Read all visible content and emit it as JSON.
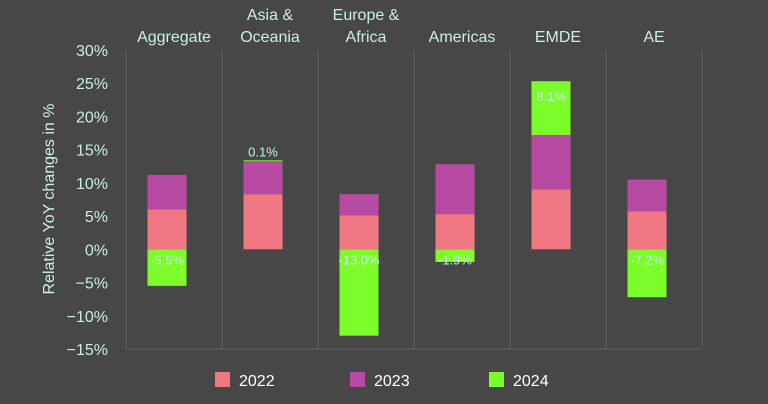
{
  "chart_data": {
    "type": "bar",
    "stacked": true,
    "ylabel": "Relative YoY changes in %",
    "ylim": [
      -15,
      30
    ],
    "yticks": [
      -15,
      -10,
      -5,
      0,
      5,
      10,
      15,
      20,
      25,
      30
    ],
    "ytick_labels": [
      "−15%",
      "−10%",
      "−5%",
      "0%",
      "5%",
      "10%",
      "15%",
      "20%",
      "25%",
      "30%"
    ],
    "categories": [
      [
        "Aggregate"
      ],
      [
        "Asia &",
        "Oceania"
      ],
      [
        "Europe &",
        "Africa"
      ],
      [
        "Americas"
      ],
      [
        "EMDE"
      ],
      [
        "AE"
      ]
    ],
    "series": [
      {
        "name": "2022",
        "color": "#f07882",
        "values": [
          6.0,
          8.3,
          5.1,
          5.3,
          9.0,
          5.7
        ]
      },
      {
        "name": "2023",
        "color": "#b74aa2",
        "values": [
          5.2,
          5.0,
          3.2,
          7.5,
          8.2,
          4.8
        ]
      },
      {
        "name": "2024",
        "color": "#7cfc29",
        "values": [
          -5.5,
          0.1,
          -13.0,
          -1.9,
          8.1,
          -7.2
        ]
      }
    ],
    "data_labels": [
      "-5.5%",
      "0.1%",
      "-13.0%",
      "-1.9%",
      "8.1%",
      "-7.2%"
    ],
    "grid": "vertical",
    "legend_position": "bottom"
  }
}
